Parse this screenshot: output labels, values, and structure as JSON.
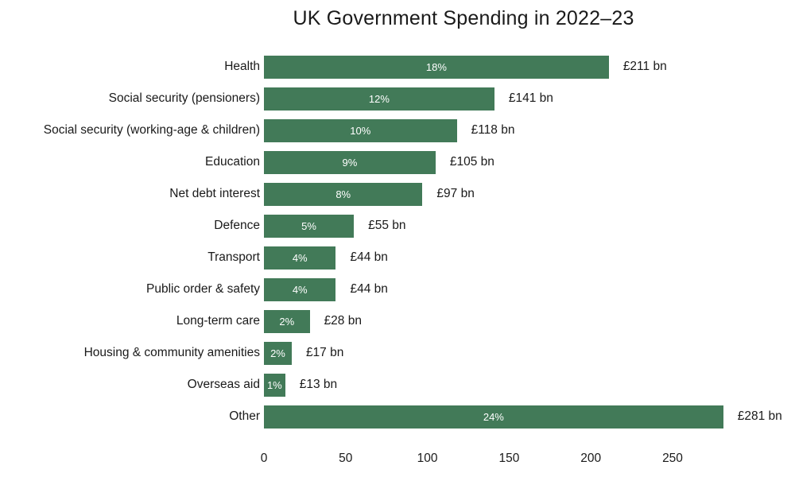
{
  "chart_data": {
    "type": "bar",
    "orientation": "horizontal",
    "title": "UK Government Spending in 2022–23",
    "categories": [
      "Health",
      "Social security (pensioners)",
      "Social security (working-age & children)",
      "Education",
      "Net debt interest",
      "Defence",
      "Transport",
      "Public order & safety",
      "Long-term care",
      "Housing & community amenities",
      "Overseas aid",
      "Other"
    ],
    "values": [
      211,
      141,
      118,
      105,
      97,
      55,
      44,
      44,
      28,
      17,
      13,
      281
    ],
    "percent_labels": [
      "18%",
      "12%",
      "10%",
      "9%",
      "8%",
      "5%",
      "4%",
      "4%",
      "2%",
      "2%",
      "1%",
      "24%"
    ],
    "value_labels": [
      "£211 bn",
      "£141 bn",
      "£118 bn",
      "£105 bn",
      "£97 bn",
      "£55 bn",
      "£44 bn",
      "£44 bn",
      "£28 bn",
      "£17 bn",
      "£13 bn",
      "£281 bn"
    ],
    "x_ticks": [
      "0",
      "50",
      "100",
      "150",
      "200",
      "250"
    ],
    "x_tick_values": [
      0,
      50,
      100,
      150,
      200,
      250
    ],
    "xlim": [
      0,
      281
    ],
    "bar_color": "#427a58",
    "bar_label_color": "#ffffff",
    "text_color": "#1a1a1a",
    "background_color": "#ffffff",
    "grid": false,
    "legend": false
  }
}
